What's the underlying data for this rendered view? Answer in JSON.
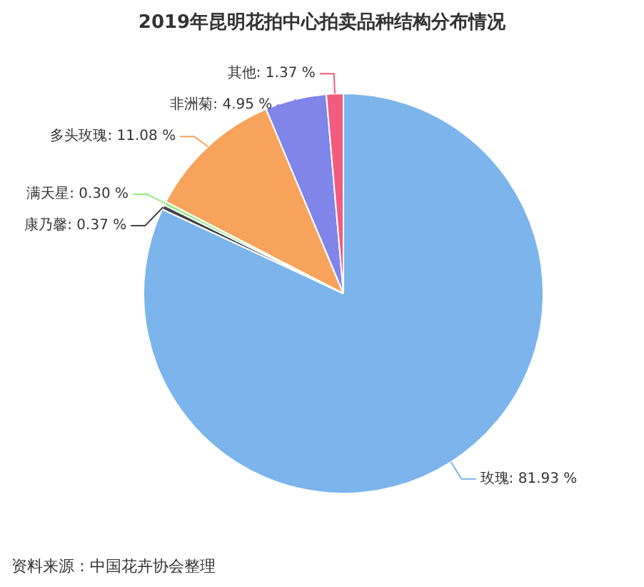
{
  "chart_data": {
    "type": "pie",
    "title": "2019年昆明花拍中心拍卖品种结构分布情况",
    "categories": [
      "玫瑰",
      "康乃馨",
      "满天星",
      "多头玫瑰",
      "非洲菊",
      "其他"
    ],
    "values": [
      81.93,
      0.37,
      0.3,
      11.08,
      4.95,
      1.37
    ],
    "value_labels": [
      "81.93 %",
      "0.37 %",
      "0.30 %",
      "11.08 %",
      "4.95 %",
      "1.37 %"
    ],
    "colors": [
      "#7cb5ec",
      "#434348",
      "#90ed7d",
      "#f7a35c",
      "#8085e9",
      "#f15c80"
    ],
    "annotations": [
      "资料来源：中国花卉协会整理"
    ]
  }
}
